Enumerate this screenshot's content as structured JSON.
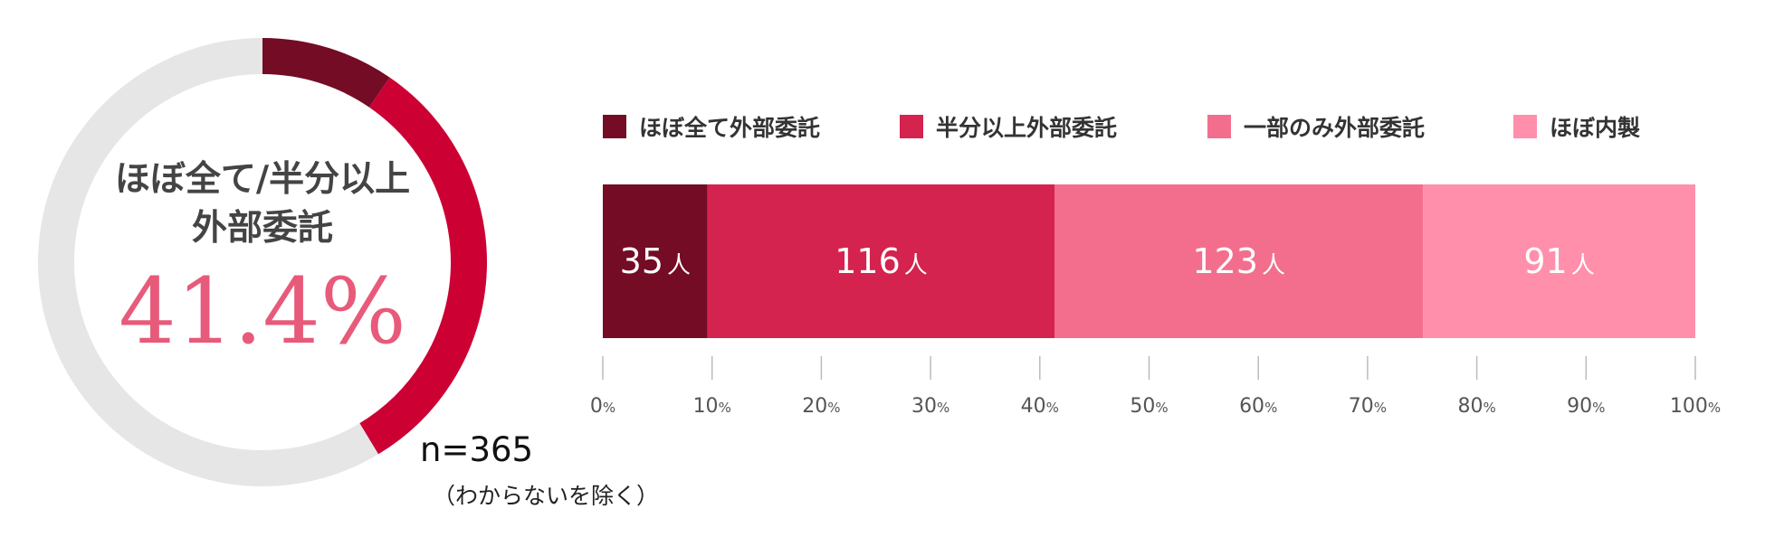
{
  "colors": {
    "series": [
      "#730c24",
      "#d4234e",
      "#f36e8c",
      "#ff8fab"
    ],
    "donut_track": "#e6e6e6",
    "donut_value": [
      "#730c24",
      "#cc0033"
    ],
    "pct_text": "#e85a7a"
  },
  "center": {
    "title_line1": "ほぼ全て/半分以上",
    "title_line2": "外部委託",
    "percent": "41.4%"
  },
  "sample": {
    "n": "n=365",
    "note": "（わからないを除く）"
  },
  "chart_data": [
    {
      "type": "pie",
      "subtype": "donut",
      "slices": [
        {
          "name": "ほぼ全て外部委託",
          "value": 35
        },
        {
          "name": "半分以上外部委託",
          "value": 116
        },
        {
          "name": "",
          "value": 214
        }
      ],
      "center_value": "41.4%"
    },
    {
      "type": "bar",
      "orientation": "horizontal",
      "stacked": true,
      "percent_axis": true,
      "series": [
        {
          "name": "ほぼ全て外部委託",
          "value": 35,
          "label": "35",
          "unit": "人"
        },
        {
          "name": "半分以上外部委託",
          "value": 116,
          "label": "116",
          "unit": "人"
        },
        {
          "name": "一部のみ外部委託",
          "value": 123,
          "label": "123",
          "unit": "人"
        },
        {
          "name": "ほぼ内製",
          "value": 91,
          "label": "91",
          "unit": "人"
        }
      ],
      "xlim": [
        0,
        100
      ],
      "xticks": [
        "0",
        "10",
        "20",
        "30",
        "40",
        "50",
        "60",
        "70",
        "80",
        "90",
        "100"
      ],
      "tick_unit": "%",
      "legend": "top"
    }
  ]
}
